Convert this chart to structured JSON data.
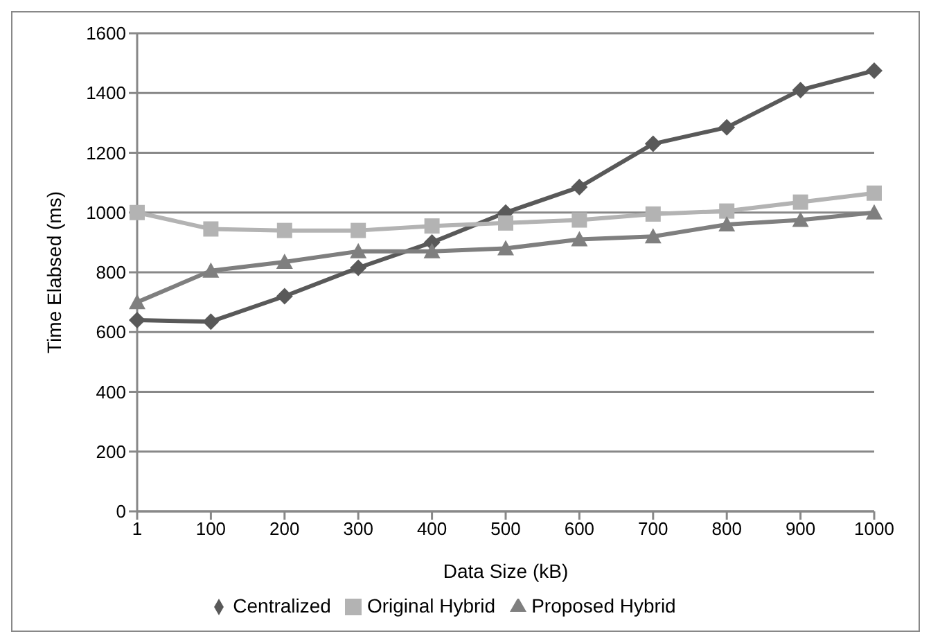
{
  "chart_data": {
    "type": "line",
    "xlabel": "Data Size (kB)",
    "ylabel": "Time Elabsed (ms)",
    "categories": [
      "1",
      "100",
      "200",
      "300",
      "400",
      "500",
      "600",
      "700",
      "800",
      "900",
      "1000"
    ],
    "series": [
      {
        "name": "Centralized",
        "color": "#595959",
        "marker": "diamond",
        "values": [
          640,
          635,
          720,
          815,
          900,
          1000,
          1085,
          1230,
          1285,
          1410,
          1475
        ]
      },
      {
        "name": "Original Hybrid",
        "color": "#b3b3b3",
        "marker": "square",
        "values": [
          1000,
          945,
          940,
          940,
          955,
          965,
          975,
          995,
          1005,
          1035,
          1065
        ]
      },
      {
        "name": "Proposed Hybrid",
        "color": "#7f7f7f",
        "marker": "triangle",
        "values": [
          700,
          805,
          835,
          870,
          870,
          880,
          910,
          920,
          960,
          975,
          1000
        ]
      }
    ],
    "ylim": [
      0,
      1600
    ],
    "yticks": [
      0,
      200,
      400,
      600,
      800,
      1000,
      1200,
      1400,
      1600
    ],
    "grid": "y",
    "legend": "bottom"
  }
}
